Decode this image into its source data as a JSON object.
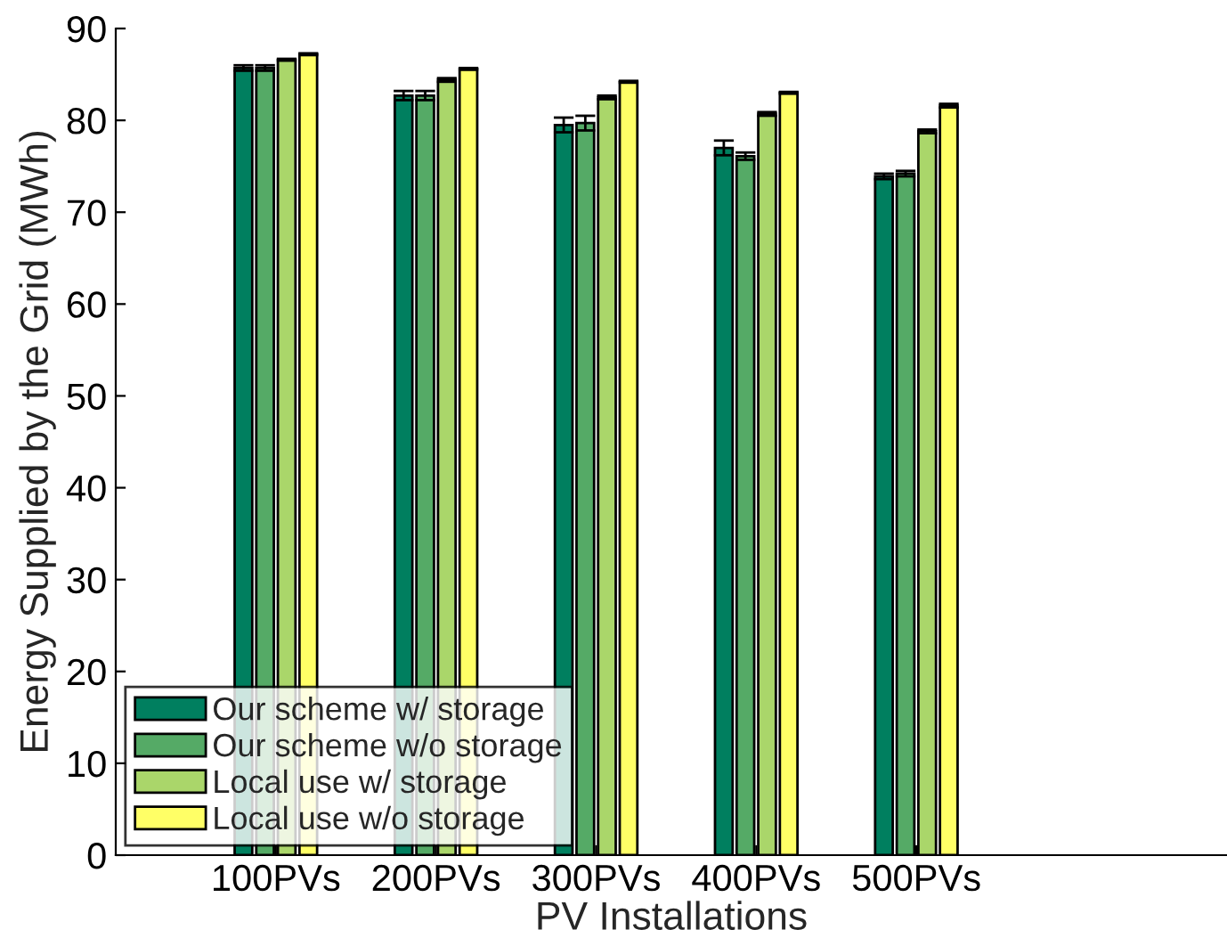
{
  "chart_data": {
    "type": "bar",
    "xlabel": "PV Installations",
    "ylabel": "Energy Supplied by the Grid (MWh)",
    "categories": [
      "100PVs",
      "200PVs",
      "300PVs",
      "400PVs",
      "500PVs"
    ],
    "series": [
      {
        "name": "Our scheme w/ storage",
        "color": "#007f5f",
        "values": [
          85.7,
          82.7,
          79.5,
          77.0,
          73.9
        ],
        "errors": [
          0.3,
          0.5,
          0.8,
          0.8,
          0.3
        ]
      },
      {
        "name": "Our scheme w/o storage",
        "color": "#55aa66",
        "values": [
          85.7,
          82.7,
          79.7,
          76.1,
          74.2
        ],
        "errors": [
          0.3,
          0.5,
          0.8,
          0.4,
          0.3
        ]
      },
      {
        "name": "Local use w/ storage",
        "color": "#aad66a",
        "values": [
          86.6,
          84.4,
          82.5,
          80.7,
          78.8
        ],
        "errors": [
          0.1,
          0.2,
          0.2,
          0.2,
          0.2
        ]
      },
      {
        "name": "Local use w/o storage",
        "color": "#ffff66",
        "values": [
          87.2,
          85.6,
          84.2,
          83.0,
          81.6
        ],
        "errors": [
          0.1,
          0.1,
          0.1,
          0.1,
          0.2
        ]
      }
    ],
    "ylim": [
      0,
      90
    ],
    "yticks": [
      0,
      10,
      20,
      30,
      40,
      50,
      60,
      70,
      80,
      90
    ],
    "grid": false,
    "legend": "bottom left"
  }
}
